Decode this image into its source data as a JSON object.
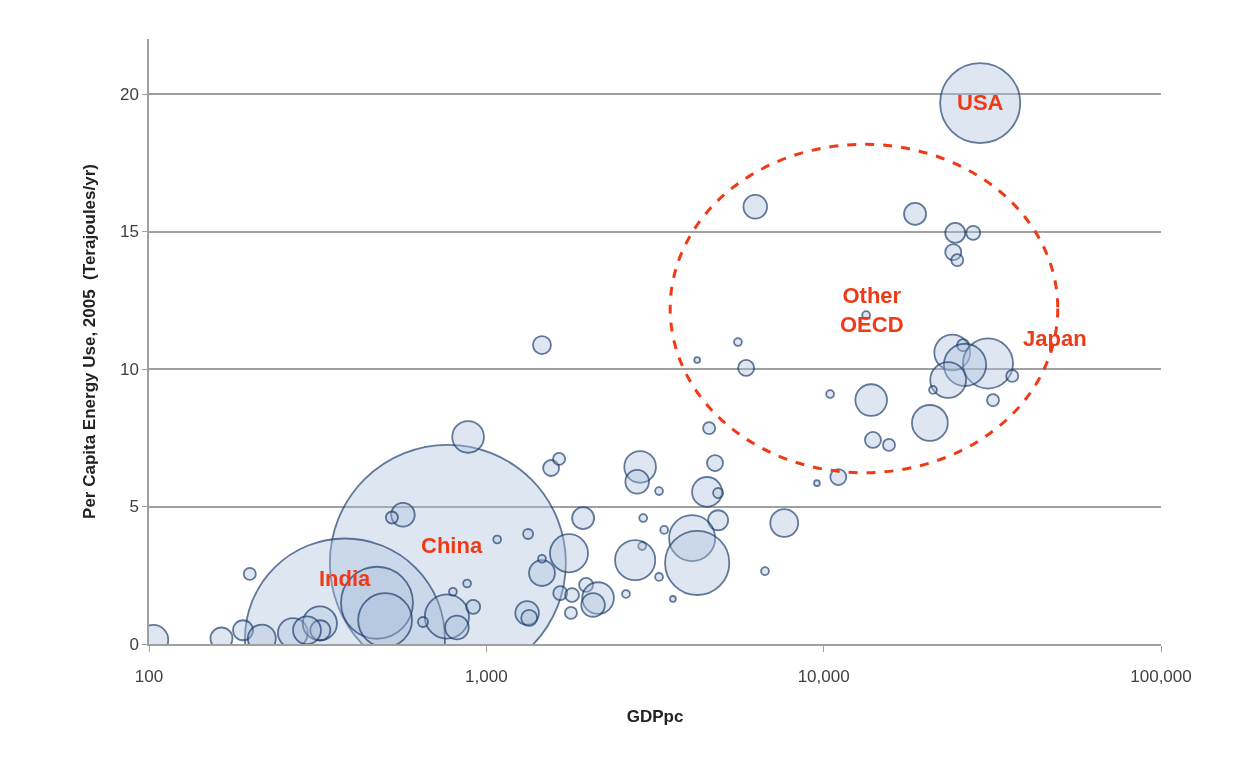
{
  "chart_data": {
    "type": "bubble",
    "xlabel": "GDPpc",
    "ylabel": "Per Capita Energy Use, 2005  (Terajoules/yr)",
    "log": "x",
    "grid": "y",
    "xlim": [
      100,
      100000
    ],
    "xticks": [
      {
        "value": 100,
        "label": "100"
      },
      {
        "value": 1000,
        "label": "1,000"
      },
      {
        "value": 10000,
        "label": "10,000"
      },
      {
        "value": 100000,
        "label": "100,000"
      }
    ],
    "ylim": [
      0,
      22
    ],
    "yticks": [
      0,
      5,
      10,
      15,
      20
    ],
    "x": [
      769,
      381,
      883,
      199,
      103,
      164,
      190,
      216,
      267,
      321,
      322,
      294,
      474,
      501,
      566,
      525,
      764,
      818,
      796,
      877,
      914,
      1077,
      649,
      1462,
      1556,
      1643,
      2857,
      2800,
      3251,
      4575,
      4763,
      4510,
      4865,
      1936,
      2918,
      3367,
      4865,
      4073,
      4217,
      2897,
      2762,
      1758,
      1462,
      1462,
      1656,
      1795,
      1976,
      2144,
      2072,
      1782,
      2594,
      3251,
      3574,
      1321,
      1340,
      1330,
      6700,
      7640,
      9550,
      5570,
      4217,
      5890,
      10450,
      11050,
      6270,
      29100,
      18660,
      24550,
      27750,
      24220,
      24890,
      13360,
      24050,
      30700,
      25900,
      26240,
      23390,
      36220,
      21090,
      31770,
      13830,
      20650,
      14000,
      15620
    ],
    "series": [
      {
        "color": "#1f3f6e",
        "values": [
          2.95,
          0.2,
          7.53,
          2.55,
          0.15,
          0.2,
          0.5,
          0.2,
          0.4,
          0.75,
          0.5,
          0.5,
          1.5,
          0.87,
          4.7,
          4.6,
          1.0,
          0.6,
          1.9,
          2.2,
          1.35,
          3.8,
          0.8,
          10.87,
          6.4,
          6.73,
          6.44,
          5.9,
          5.56,
          7.85,
          6.58,
          5.53,
          5.49,
          4.58,
          4.58,
          4.15,
          4.5,
          3.85,
          2.95,
          3.56,
          3.05,
          3.3,
          2.58,
          3.1,
          1.85,
          1.78,
          2.15,
          1.67,
          1.42,
          1.13,
          1.82,
          2.44,
          1.64,
          1.13,
          0.95,
          4.0,
          2.65,
          4.4,
          5.85,
          10.98,
          10.33,
          10.04,
          9.09,
          6.07,
          15.9,
          19.67,
          15.64,
          14.95,
          14.95,
          14.25,
          13.96,
          11.96,
          10.6,
          10.2,
          10.87,
          10.15,
          9.6,
          9.75,
          9.24,
          8.87,
          8.87,
          8.04,
          7.42,
          7.24
        ],
        "sizes": [
          1,
          0.718,
          0.018,
          0.0026,
          0.016,
          0.0087,
          0.0072,
          0.014,
          0.016,
          0.021,
          0.0072,
          0.014,
          0.093,
          0.052,
          0.01,
          0.0026,
          0.035,
          0.01,
          0.0011,
          0.0011,
          0.0035,
          0.0011,
          0.0018,
          0.0058,
          0.0046,
          0.0026,
          0.018,
          0.01,
          0.0011,
          0.0026,
          0.0046,
          0.016,
          0.0018,
          0.0087,
          0.0011,
          0.0011,
          0.0072,
          0.038,
          0.074,
          0.0011,
          0.029,
          0.026,
          0.012,
          0.0011,
          0.0035,
          0.0035,
          0.0035,
          0.018,
          0.01,
          0.0026,
          0.0011,
          0.0011,
          0.0006,
          0.01,
          0.0046,
          0.0018,
          0.0011,
          0.014,
          0.0006,
          0.0011,
          0.0006,
          0.0046,
          0.0011,
          0.0046,
          0.01,
          0.115,
          0.0087,
          0.0072,
          0.0035,
          0.0046,
          0.0026,
          0.0011,
          0.023,
          0.045,
          0.0026,
          0.032,
          0.023,
          0.0026,
          0.0011,
          0.0026,
          0.018,
          0.023,
          0.0046,
          0.0026
        ]
      }
    ],
    "annotations": [
      {
        "text": "USA",
        "x": 29100,
        "y": 19.7
      },
      {
        "text": "Japan",
        "x": 30700,
        "y": 10.2
      },
      {
        "text": "China",
        "x": 769,
        "y": 2.95
      },
      {
        "text": "India",
        "x": 381,
        "y": 0.2
      },
      {
        "text": "Other\nOECD",
        "x": 13900,
        "y": 12.15
      }
    ]
  }
}
